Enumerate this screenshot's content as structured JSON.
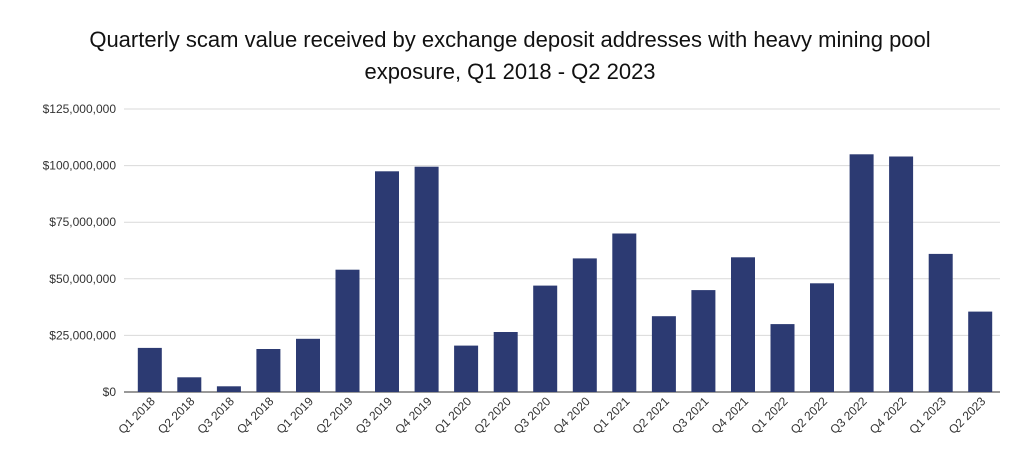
{
  "chart_data": {
    "type": "bar",
    "title": "Quarterly scam value received by exchange deposit addresses with heavy mining pool exposure, Q1 2018 - Q2 2023",
    "xlabel": "",
    "ylabel": "",
    "ylim": [
      0,
      125000000
    ],
    "yticks": [
      0,
      25000000,
      50000000,
      75000000,
      100000000,
      125000000
    ],
    "ytick_labels": [
      "$0",
      "$25,000,000",
      "$50,000,000",
      "$75,000,000",
      "$100,000,000",
      "$125,000,000"
    ],
    "grid": true,
    "bar_color": "#2c3a72",
    "categories": [
      "Q1 2018",
      "Q2 2018",
      "Q3 2018",
      "Q4 2018",
      "Q1 2019",
      "Q2 2019",
      "Q3 2019",
      "Q4 2019",
      "Q1 2020",
      "Q2 2020",
      "Q3 2020",
      "Q4 2020",
      "Q1 2021",
      "Q2 2021",
      "Q3 2021",
      "Q4 2021",
      "Q1 2022",
      "Q2 2022",
      "Q3 2022",
      "Q4 2022",
      "Q1 2023",
      "Q2 2023"
    ],
    "values": [
      19500000,
      6500000,
      2500000,
      19000000,
      23500000,
      54000000,
      97500000,
      99500000,
      20500000,
      26500000,
      47000000,
      59000000,
      70000000,
      33500000,
      45000000,
      59500000,
      30000000,
      48000000,
      105000000,
      104000000,
      61000000,
      35500000
    ]
  }
}
